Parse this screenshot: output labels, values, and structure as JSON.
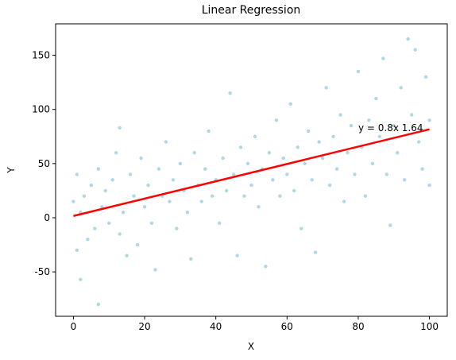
{
  "chart_data": {
    "type": "scatter",
    "title": "Linear Regression",
    "xlabel": "X",
    "ylabel": "Y",
    "x": [
      0,
      1,
      1,
      2,
      2,
      3,
      4,
      5,
      6,
      7,
      7,
      8,
      9,
      10,
      11,
      12,
      13,
      13,
      14,
      15,
      16,
      17,
      18,
      19,
      20,
      21,
      22,
      23,
      24,
      25,
      26,
      27,
      28,
      29,
      30,
      31,
      32,
      33,
      34,
      35,
      36,
      37,
      38,
      39,
      40,
      41,
      42,
      43,
      44,
      45,
      46,
      47,
      48,
      49,
      50,
      51,
      52,
      53,
      54,
      55,
      56,
      57,
      58,
      59,
      60,
      61,
      62,
      63,
      64,
      65,
      66,
      67,
      68,
      69,
      70,
      71,
      72,
      73,
      74,
      75,
      76,
      77,
      78,
      79,
      80,
      81,
      82,
      83,
      84,
      85,
      86,
      87,
      88,
      89,
      90,
      91,
      92,
      93,
      94,
      95,
      96,
      97,
      98,
      99,
      100,
      100
    ],
    "values": [
      15,
      -30,
      40,
      5,
      -57,
      20,
      -20,
      30,
      -10,
      -80,
      45,
      10,
      25,
      -5,
      35,
      60,
      -15,
      83,
      5,
      -35,
      40,
      20,
      -25,
      55,
      10,
      30,
      -5,
      -48,
      45,
      20,
      70,
      15,
      35,
      -10,
      50,
      25,
      5,
      -38,
      60,
      30,
      15,
      45,
      80,
      20,
      35,
      -5,
      55,
      25,
      115,
      40,
      -35,
      65,
      20,
      50,
      30,
      75,
      10,
      45,
      -45,
      60,
      35,
      90,
      20,
      55,
      40,
      105,
      25,
      65,
      -10,
      50,
      80,
      35,
      -32,
      70,
      55,
      120,
      30,
      75,
      45,
      95,
      15,
      60,
      85,
      40,
      135,
      65,
      20,
      90,
      50,
      110,
      75,
      147,
      40,
      -7,
      85,
      60,
      120,
      35,
      165,
      95,
      155,
      70,
      45,
      130,
      30,
      90
    ],
    "color": "#add8e6",
    "line": {
      "x": [
        0,
        100
      ],
      "values": [
        1.64,
        81.64
      ],
      "color": "#ff0000"
    },
    "annotation": {
      "text": "y = 0.8x 1.64",
      "x": 80,
      "y": 80
    },
    "xlim": [
      -5,
      105
    ],
    "ylim": [
      -91,
      179
    ],
    "xticks": [
      0,
      20,
      40,
      60,
      80,
      100
    ],
    "yticks": [
      -50,
      0,
      50,
      100,
      150
    ],
    "grid": false
  }
}
